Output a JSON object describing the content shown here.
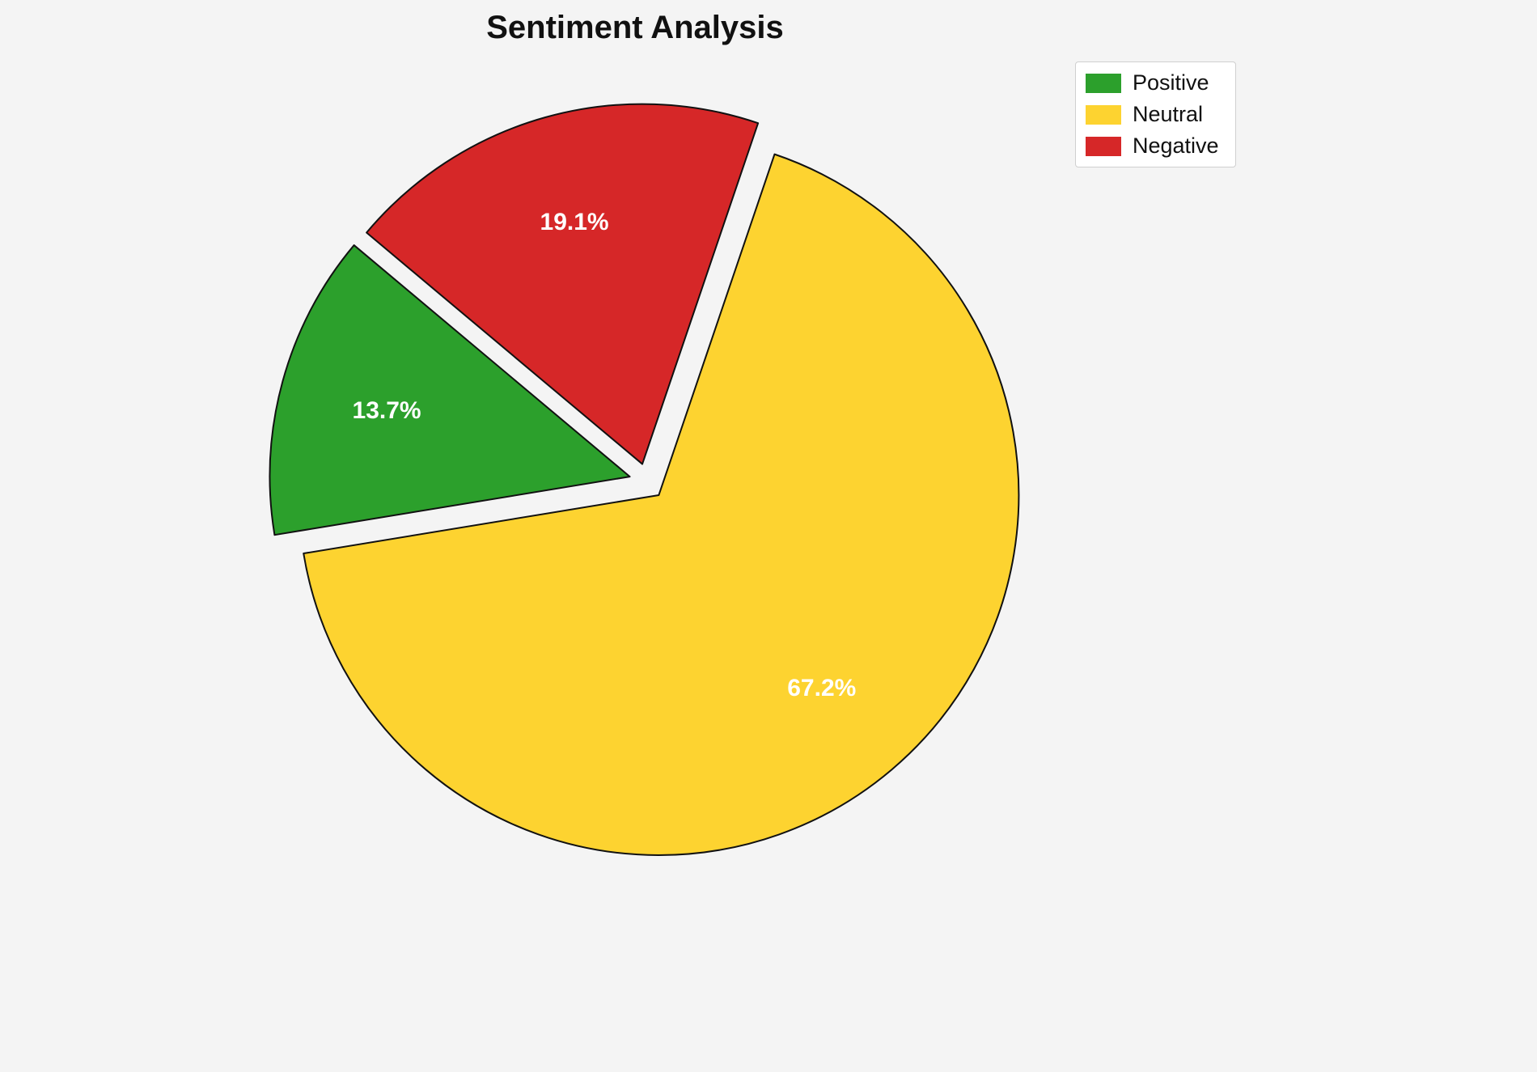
{
  "chart_data": {
    "type": "pie",
    "title": "Sentiment Analysis",
    "labels": [
      "Positive",
      "Neutral",
      "Negative"
    ],
    "values": [
      13.7,
      67.2,
      19.1
    ],
    "percent_labels": [
      "13.7%",
      "67.2%",
      "19.1%"
    ],
    "colors": [
      "#2ca02c",
      "#fdd330",
      "#d62728"
    ],
    "edge_color": "#111111",
    "label_color": "#ffffff",
    "start_angle": 140,
    "counterclockwise": true,
    "explode": [
      0.05,
      0.05,
      0.05
    ],
    "pct_distance": 0.7,
    "legend_position": "upper right",
    "legend_entries": [
      "Positive",
      "Neutral",
      "Negative"
    ],
    "background": "#f4f4f4"
  }
}
